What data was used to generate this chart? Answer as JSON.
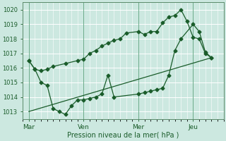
{
  "xlabel": "Pression niveau de la mer( hPa )",
  "bg_color": "#cce8e0",
  "grid_color": "#ffffff",
  "line_color": "#1a5c2a",
  "vline_color": "#6aaa88",
  "ylim": [
    1012.5,
    1020.5
  ],
  "yticks": [
    1013,
    1014,
    1015,
    1016,
    1017,
    1018,
    1019,
    1020
  ],
  "xtick_labels": [
    "Mar",
    "Ven",
    "Mer",
    "Jeu"
  ],
  "xtick_positions": [
    0,
    27,
    54,
    81
  ],
  "xlim": [
    -3,
    96
  ],
  "line1_x": [
    0,
    3,
    6,
    9,
    12,
    18,
    24,
    27,
    30,
    33,
    36,
    39,
    42,
    45,
    48,
    54,
    57,
    60,
    63,
    66,
    69,
    72,
    75,
    78,
    81,
    84,
    87,
    90
  ],
  "line1_y": [
    1016.5,
    1015.9,
    1015.8,
    1015.9,
    1016.1,
    1016.3,
    1016.5,
    1016.6,
    1017.0,
    1017.2,
    1017.5,
    1017.7,
    1017.9,
    1018.0,
    1018.4,
    1018.5,
    1018.3,
    1018.5,
    1018.5,
    1019.1,
    1019.5,
    1019.6,
    1020.0,
    1019.2,
    1018.1,
    1018.0,
    1017.0,
    1016.7
  ],
  "line2_x": [
    0,
    3,
    6,
    9,
    12,
    15,
    18,
    21,
    24,
    27,
    30,
    33,
    36,
    39,
    42,
    54,
    57,
    60,
    63,
    66,
    69,
    72,
    75,
    81,
    84,
    87,
    90
  ],
  "line2_y": [
    1016.5,
    1015.9,
    1015.0,
    1014.8,
    1013.2,
    1013.0,
    1012.8,
    1013.4,
    1013.8,
    1013.8,
    1013.9,
    1014.0,
    1014.2,
    1015.5,
    1014.0,
    1014.2,
    1014.3,
    1014.4,
    1014.5,
    1014.6,
    1015.5,
    1017.2,
    1018.0,
    1019.0,
    1018.5,
    1017.1,
    1016.7
  ],
  "line3_x": [
    0,
    90
  ],
  "line3_y": [
    1013.0,
    1016.7
  ],
  "n_per_day": 9
}
